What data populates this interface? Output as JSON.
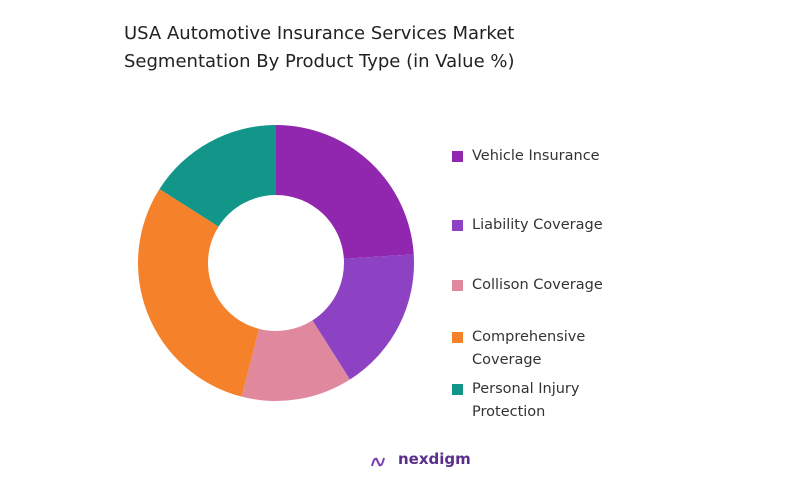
{
  "chart_data": {
    "type": "donut",
    "title": "USA Automotive Insurance Services Market Segmentation By Product Type (in Value %)",
    "categories": [
      "Vehicle Insurance",
      "Liability Coverage",
      "Collison Coverage",
      "Comprehensive Coverage",
      "Personal Injury Protection"
    ],
    "values": [
      24,
      17,
      13,
      30,
      16
    ],
    "colors": [
      "#9127af",
      "#8c42c2",
      "#e0899e",
      "#f5822a",
      "#12968a"
    ],
    "legend": "right"
  },
  "brand": "nexdigm"
}
